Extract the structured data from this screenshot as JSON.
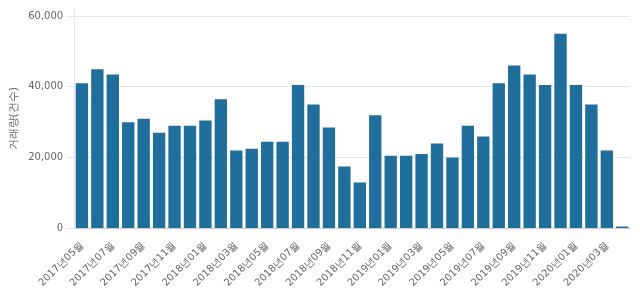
{
  "chart_data": {
    "type": "bar",
    "ylabel": "거래량(건수)",
    "categories": [
      "2017년05월",
      null,
      "2017년07월",
      null,
      "2017년09월",
      null,
      "2017년11월",
      null,
      "2018년01월",
      null,
      "2018년03월",
      null,
      "2018년05월",
      null,
      "2018년07월",
      null,
      "2018년09월",
      null,
      "2018년11월",
      null,
      "2019년01월",
      null,
      "2019년03월",
      null,
      "2019년05월",
      null,
      "2019년07월",
      null,
      "2019년09월",
      null,
      "2019년11월",
      null,
      "2020년01월",
      null,
      "2020년03월",
      null
    ],
    "values": [
      41000,
      45000,
      43500,
      30000,
      31000,
      27000,
      29000,
      29000,
      30500,
      36500,
      22000,
      22500,
      24500,
      24500,
      40500,
      35000,
      28500,
      17500,
      13000,
      32000,
      20500,
      20500,
      21000,
      24000,
      20000,
      29000,
      26000,
      41000,
      46000,
      43500,
      40500,
      55000,
      40500,
      35000,
      22000,
      500
    ],
    "color": "#1f6e9c",
    "ylim": [
      0,
      62000
    ],
    "yticks": [
      0,
      {
        "value": 20000,
        "label": "20,000"
      },
      {
        "value": 40000,
        "label": "40,000"
      },
      {
        "value": 60000,
        "label": "60,000"
      }
    ],
    "grid": true
  }
}
